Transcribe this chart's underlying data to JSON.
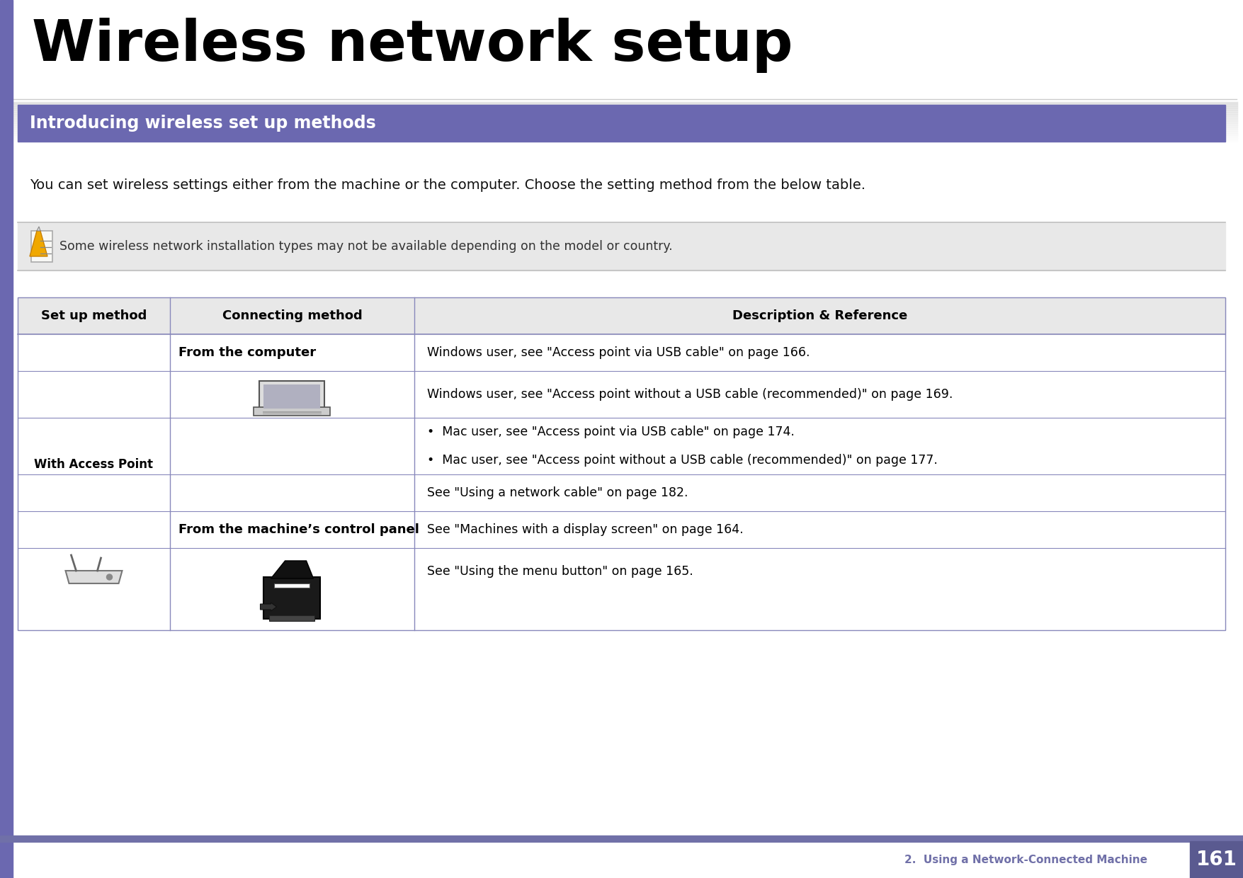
{
  "title": "Wireless network setup",
  "section_header": "Introducing wireless set up methods",
  "section_header_bg": "#6b68b0",
  "section_header_color": "#ffffff",
  "body_text": "You can set wireless settings either from the machine or the computer. Choose the setting method from the below table.",
  "note_text": "Some wireless network installation types may not be available depending on the model or country.",
  "table_col_headers": [
    "Set up method",
    "Connecting method",
    "Description & Reference"
  ],
  "desc_rows": [
    "Windows user, see \"Access point via USB cable\" on page 166.",
    "Windows user, see \"Access point without a USB cable (recommended)\" on page 169.",
    "•  Mac user, see \"Access point via USB cable\" on page 174.\n•  Mac user, see \"Access point without a USB cable (recommended)\" on page 177.",
    "See \"Using a network cable\" on page 182.",
    "See \"Machines with a display screen\" on page 164.",
    "See \"Using the menu button\" on page 165."
  ],
  "footer_text": "2.  Using a Network-Connected Machine",
  "footer_page": "161",
  "footer_bg": "#7070a8",
  "footer_page_bg": "#5a5a90",
  "left_bar_color": "#6b68b0",
  "bg_color": "#ffffff",
  "table_line_color": "#8888bb",
  "table_header_bg": "#e8e8e8"
}
